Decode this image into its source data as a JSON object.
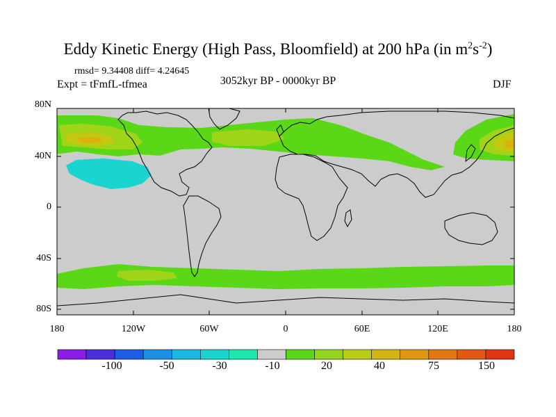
{
  "title": {
    "text": "Eddy Kinetic Energy (High Pass, Bloomfield) at 200 hPa (in m",
    "unit_m_exp": "2",
    "unit_s": "s",
    "unit_s_exp": "-2",
    "close": ")"
  },
  "stats": "rmsd= 9.34408 diff= 4.24645",
  "experiment": "Expt = tFmfL-tfmea",
  "period": "3052kyr BP - 0000kyr BP",
  "season": "DJF",
  "lat_labels": [
    "80N",
    "40N",
    "0",
    "40S",
    "80S"
  ],
  "lon_labels": [
    "180",
    "120W",
    "60W",
    "0",
    "60E",
    "120E",
    "180"
  ],
  "colorbar": {
    "labels": [
      "-100",
      "-50",
      "-30",
      "-10",
      "20",
      "40",
      "75",
      "150"
    ],
    "colors": [
      "#8a1ee8",
      "#4a2fe0",
      "#1e5ce8",
      "#1a90e8",
      "#19b8e0",
      "#1ad4d0",
      "#1ee8b0",
      "#cccccc",
      "#5ad818",
      "#94d41c",
      "#b8cc14",
      "#d4b410",
      "#e09810",
      "#e47810",
      "#e45814",
      "#e03414"
    ]
  },
  "map": {
    "background": "#cccccc",
    "green": "#5ad818",
    "yellow_green": "#a0d418",
    "yellow": "#c4c810",
    "orange": "#dcb010",
    "cyan": "#1ad4d0"
  }
}
